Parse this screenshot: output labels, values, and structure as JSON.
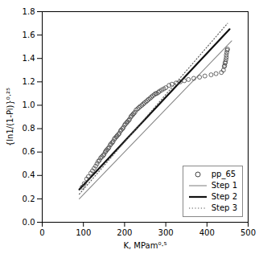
{
  "chart_data": {
    "type": "scatter",
    "xlabel": "K, MPam⁰·⁵",
    "ylabel": "{ln1/(1-Pi)}⁰·²⁵",
    "xlim": [
      0,
      500
    ],
    "ylim": [
      0,
      1.8
    ],
    "xticks": [
      0,
      100,
      200,
      300,
      400,
      500
    ],
    "yticks": [
      0,
      0.2,
      0.4,
      0.6,
      0.8,
      1.0,
      1.2,
      1.4,
      1.6,
      1.8
    ],
    "legend": "lower right",
    "series": [
      {
        "name": "pp_65",
        "type": "scatter",
        "marker": "circle",
        "color": "#444444",
        "x": [
          97,
          102,
          108,
          112,
          118,
          122,
          126,
          130,
          133,
          136,
          139,
          142,
          145,
          148,
          150,
          153,
          155,
          157,
          160,
          162,
          165,
          167,
          170,
          172,
          175,
          177,
          180,
          182,
          185,
          187,
          190,
          192,
          195,
          197,
          200,
          202,
          205,
          207,
          210,
          212,
          215,
          217,
          220,
          222,
          225,
          228,
          232,
          235,
          238,
          242,
          245,
          248,
          252,
          255,
          258,
          262,
          265,
          268,
          272,
          275,
          278,
          282,
          285,
          290,
          295,
          300,
          308,
          315,
          325,
          335,
          345,
          355,
          368,
          382,
          395,
          410,
          422,
          435,
          440,
          442,
          443,
          444,
          445,
          446,
          447,
          447,
          448,
          449,
          450
        ],
        "values": [
          0.3,
          0.33,
          0.37,
          0.39,
          0.42,
          0.44,
          0.46,
          0.48,
          0.5,
          0.52,
          0.53,
          0.55,
          0.56,
          0.57,
          0.58,
          0.6,
          0.61,
          0.62,
          0.63,
          0.64,
          0.66,
          0.67,
          0.68,
          0.69,
          0.71,
          0.72,
          0.73,
          0.74,
          0.75,
          0.76,
          0.78,
          0.79,
          0.8,
          0.81,
          0.83,
          0.84,
          0.85,
          0.86,
          0.87,
          0.88,
          0.9,
          0.91,
          0.92,
          0.93,
          0.94,
          0.96,
          0.97,
          0.98,
          0.99,
          1.0,
          1.01,
          1.02,
          1.03,
          1.04,
          1.05,
          1.06,
          1.07,
          1.08,
          1.09,
          1.1,
          1.1,
          1.11,
          1.12,
          1.13,
          1.14,
          1.15,
          1.17,
          1.18,
          1.19,
          1.2,
          1.21,
          1.22,
          1.23,
          1.24,
          1.25,
          1.26,
          1.27,
          1.28,
          1.3,
          1.33,
          1.34,
          1.36,
          1.37,
          1.39,
          1.41,
          1.43,
          1.45,
          1.47,
          1.48
        ]
      },
      {
        "name": "Step 1",
        "type": "line",
        "line_style": "solid",
        "color": "#888888",
        "x": [
          90,
          460
        ],
        "values": [
          0.2,
          1.55
        ]
      },
      {
        "name": "Step 2",
        "type": "line",
        "line_style": "solid",
        "color": "#111111",
        "x": [
          90,
          455
        ],
        "values": [
          0.28,
          1.65
        ]
      },
      {
        "name": "Step 3",
        "type": "line",
        "line_style": "dotted",
        "color": "#555555",
        "x": [
          90,
          450
        ],
        "values": [
          0.24,
          1.7
        ]
      }
    ]
  }
}
